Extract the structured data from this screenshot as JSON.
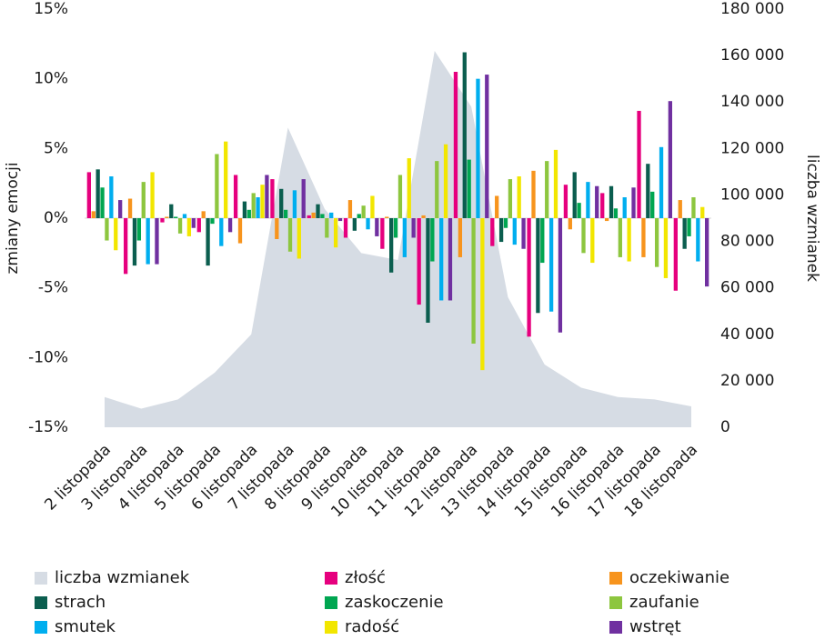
{
  "chart_data": {
    "type": "bar",
    "y_label": "zmiany emocji",
    "y2_label": "liczba wzmianek",
    "categories": [
      "2 listopada",
      "3 listopada",
      "4 listopada",
      "5 listopada",
      "6 listopada",
      "7 listopada",
      "8 listopada",
      "9 listopada",
      "10 listopada",
      "11 listopada",
      "12 listopada",
      "13 listopada",
      "14 listopada",
      "15 listopada",
      "16 listopada",
      "17 listopada",
      "18 listopada"
    ],
    "ylim": [
      -15,
      15
    ],
    "yticks": [
      {
        "value": -15,
        "label": "-15%"
      },
      {
        "value": -10,
        "label": "-10%"
      },
      {
        "value": -5,
        "label": "-5%"
      },
      {
        "value": 0,
        "label": "0%"
      },
      {
        "value": 5,
        "label": "5%"
      },
      {
        "value": 10,
        "label": "10%"
      },
      {
        "value": 15,
        "label": "15%"
      }
    ],
    "y2lim": [
      0,
      180000
    ],
    "y2ticks": [
      0,
      {
        "value": 20000,
        "label": "20 000"
      },
      {
        "value": 40000,
        "label": "40 000"
      },
      {
        "value": 60000,
        "label": "60 000"
      },
      {
        "value": 80000,
        "label": "80 000"
      },
      {
        "value": 100000,
        "label": "100 000"
      },
      {
        "value": 120000,
        "label": "120 000"
      },
      {
        "value": 140000,
        "label": "140 000"
      },
      {
        "value": 160000,
        "label": "160 000"
      },
      {
        "value": 180000,
        "label": "180 000"
      }
    ],
    "series": [
      {
        "name": "liczba wzmianek",
        "type": "area",
        "axis": "y2",
        "color": "#d6dce4",
        "values": [
          13000,
          8000,
          12000,
          23500,
          40000,
          129000,
          94000,
          75000,
          72000,
          162000,
          138000,
          56000,
          27000,
          17000,
          13000,
          12000,
          9000
        ]
      },
      {
        "name": "złość",
        "color": "#e6007e",
        "values": [
          3.3,
          -4.0,
          -0.3,
          -1.0,
          3.1,
          2.8,
          0.2,
          -1.4,
          -2.2,
          -6.2,
          10.5,
          -2.0,
          -8.5,
          2.4,
          1.8,
          7.7,
          -5.2
        ]
      },
      {
        "name": "oczekiwanie",
        "color": "#f7941d",
        "values": [
          0.5,
          1.4,
          0.1,
          0.5,
          -1.8,
          -1.5,
          0.4,
          1.3,
          0.1,
          0.2,
          -2.8,
          1.6,
          3.4,
          -0.8,
          -0.2,
          -2.8,
          1.3
        ]
      },
      {
        "name": "strach",
        "color": "#0b5e4f",
        "values": [
          3.5,
          -3.4,
          1.0,
          -3.4,
          1.2,
          2.1,
          1.0,
          -0.9,
          -3.9,
          -7.5,
          11.9,
          -1.7,
          -6.8,
          3.3,
          2.3,
          3.9,
          -2.2
        ]
      },
      {
        "name": "zaskoczenie",
        "color": "#00a651",
        "values": [
          2.2,
          -1.6,
          0.1,
          -0.4,
          0.6,
          0.6,
          0.3,
          0.3,
          -1.4,
          -3.1,
          4.2,
          -0.7,
          -3.2,
          1.1,
          0.7,
          1.9,
          -1.3
        ]
      },
      {
        "name": "zaufanie",
        "color": "#8dc63f",
        "values": [
          -1.6,
          2.6,
          -1.1,
          4.6,
          1.8,
          -2.4,
          -1.4,
          0.9,
          3.1,
          4.1,
          -9.0,
          2.8,
          4.1,
          -2.5,
          -2.8,
          -3.5,
          1.5
        ]
      },
      {
        "name": "smutek",
        "color": "#00aeef",
        "values": [
          3.0,
          -3.3,
          0.3,
          -2.0,
          1.5,
          2.0,
          0.4,
          -0.8,
          -2.8,
          -5.9,
          10.0,
          -1.9,
          -6.7,
          2.6,
          1.5,
          5.1,
          -3.1
        ]
      },
      {
        "name": "radość",
        "color": "#f2e600",
        "values": [
          -2.3,
          3.3,
          -1.3,
          5.5,
          2.4,
          -2.9,
          -2.1,
          1.6,
          4.3,
          5.3,
          -10.9,
          3.0,
          4.9,
          -3.2,
          -3.1,
          -4.3,
          0.8
        ]
      },
      {
        "name": "wstręt",
        "color": "#7030a0",
        "values": [
          1.3,
          -3.3,
          -0.7,
          -1.0,
          3.1,
          2.8,
          -0.2,
          -1.3,
          -1.4,
          -5.9,
          10.3,
          -2.2,
          -8.2,
          2.3,
          2.2,
          8.4,
          -4.9
        ]
      }
    ]
  }
}
